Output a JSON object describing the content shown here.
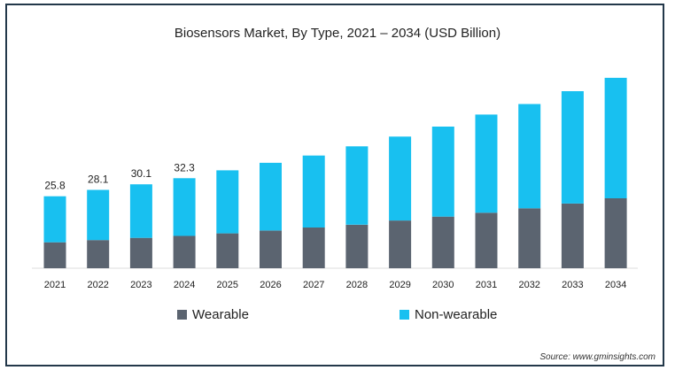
{
  "chart_data": {
    "type": "bar",
    "stacked": true,
    "title": "Biosensors Market, By Type, 2021 – 2034 (USD Billion)",
    "categories": [
      "2021",
      "2022",
      "2023",
      "2024",
      "2025",
      "2026",
      "2027",
      "2028",
      "2029",
      "2030",
      "2031",
      "2032",
      "2033",
      "2034"
    ],
    "series": [
      {
        "name": "Wearable",
        "color": "#5b6470",
        "values": [
          9.3,
          10.1,
          10.9,
          11.6,
          12.5,
          13.5,
          14.6,
          15.6,
          17.1,
          18.5,
          19.9,
          21.5,
          23.2,
          25.1
        ]
      },
      {
        "name": "Non-wearable",
        "color": "#18c0f0",
        "values": [
          16.5,
          18.0,
          19.2,
          20.7,
          22.6,
          24.3,
          25.8,
          28.1,
          30.1,
          32.3,
          35.2,
          37.4,
          40.3,
          43.2
        ]
      }
    ],
    "data_labels": [
      "25.8",
      "28.1",
      "30.1",
      "32.3"
    ],
    "ylim": [
      0,
      80
    ],
    "legend_position": "bottom",
    "grid": false
  },
  "source": "Source: www.gminsights.com"
}
